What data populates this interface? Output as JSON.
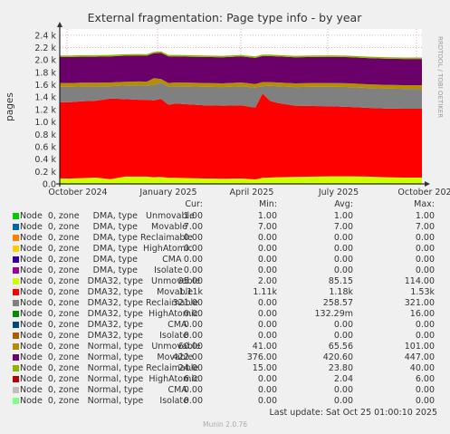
{
  "chart_data": {
    "type": "area",
    "title": "External fragmentation: Page type info - by year",
    "ylabel": "pages",
    "ylim": [
      0,
      2500
    ],
    "y_ticks": [
      "0.0",
      "0.2 k",
      "0.4 k",
      "0.6 k",
      "0.8 k",
      "1.0 k",
      "1.2 k",
      "1.4 k",
      "1.6 k",
      "1.8 k",
      "2.0 k",
      "2.2 k",
      "2.4 k"
    ],
    "x_ticks": [
      "October 2024",
      "January 2025",
      "April 2025",
      "July 2025",
      "October 2025"
    ],
    "side_label": "RRDTOOL / TOBI OETIKER",
    "legend_headers": {
      "cur": "Cur:",
      "min": "Min:",
      "avg": "Avg:",
      "max": "Max:"
    },
    "series": [
      {
        "name": "Node  0, zone     DMA, type   Unmovable",
        "color": "#00cc00",
        "cur": "1.00",
        "min": "1.00",
        "avg": "1.00",
        "max": "1.00"
      },
      {
        "name": "Node  0, zone     DMA, type     Movable",
        "color": "#0066b3",
        "cur": "7.00",
        "min": "7.00",
        "avg": "7.00",
        "max": "7.00"
      },
      {
        "name": "Node  0, zone     DMA, type Reclaimable",
        "color": "#ff8000",
        "cur": "0.00",
        "min": "0.00",
        "avg": "0.00",
        "max": "0.00"
      },
      {
        "name": "Node  0, zone     DMA, type  HighAtomic",
        "color": "#ffcc00",
        "cur": "0.00",
        "min": "0.00",
        "avg": "0.00",
        "max": "0.00"
      },
      {
        "name": "Node  0, zone     DMA, type         CMA",
        "color": "#330099",
        "cur": "0.00",
        "min": "0.00",
        "avg": "0.00",
        "max": "0.00"
      },
      {
        "name": "Node  0, zone     DMA, type      Isolate",
        "color": "#990099",
        "cur": "0.00",
        "min": "0.00",
        "avg": "0.00",
        "max": "0.00"
      },
      {
        "name": "Node  0, zone   DMA32, type   Unmovable",
        "color": "#ccff00",
        "cur": "95.00",
        "min": "2.00",
        "avg": "85.15",
        "max": "114.00"
      },
      {
        "name": "Node  0, zone   DMA32, type     Movable",
        "color": "#ff0000",
        "cur": "1.11k",
        "min": "1.11k",
        "avg": "1.18k",
        "max": "1.53k"
      },
      {
        "name": "Node  0, zone   DMA32, type Reclaimable",
        "color": "#808080",
        "cur": "321.00",
        "min": "0.00",
        "avg": "258.57",
        "max": "321.00"
      },
      {
        "name": "Node  0, zone   DMA32, type  HighAtomic",
        "color": "#008f00",
        "cur": "0.00",
        "min": "0.00",
        "avg": "132.29m",
        "max": "16.00"
      },
      {
        "name": "Node  0, zone   DMA32, type         CMA",
        "color": "#00487d",
        "cur": "0.00",
        "min": "0.00",
        "avg": "0.00",
        "max": "0.00"
      },
      {
        "name": "Node  0, zone   DMA32, type      Isolate",
        "color": "#b35a00",
        "cur": "0.00",
        "min": "0.00",
        "avg": "0.00",
        "max": "0.00"
      },
      {
        "name": "Node  0, zone   Normal, type   Unmovable",
        "color": "#b38f00",
        "cur": "60.00",
        "min": "41.00",
        "avg": "65.56",
        "max": "101.00"
      },
      {
        "name": "Node  0, zone   Normal, type     Movable",
        "color": "#6b006b",
        "cur": "422.00",
        "min": "376.00",
        "avg": "420.60",
        "max": "447.00"
      },
      {
        "name": "Node  0, zone   Normal, type Reclaimable",
        "color": "#8fb300",
        "cur": "24.00",
        "min": "15.00",
        "avg": "23.80",
        "max": "40.00"
      },
      {
        "name": "Node  0, zone   Normal, type  HighAtomic",
        "color": "#b30000",
        "cur": "6.00",
        "min": "0.00",
        "avg": "2.04",
        "max": "6.00"
      },
      {
        "name": "Node  0, zone   Normal, type         CMA",
        "color": "#bebebe",
        "cur": "0.00",
        "min": "0.00",
        "avg": "0.00",
        "max": "0.00"
      },
      {
        "name": "Node  0, zone   Normal, type      Isolate",
        "color": "#80ff80",
        "cur": "0.00",
        "min": "0.00",
        "avg": "0.00",
        "max": "0.00"
      }
    ],
    "stack_profile": {
      "x": [
        0,
        0.03,
        0.06,
        0.1,
        0.14,
        0.18,
        0.22,
        0.24,
        0.26,
        0.28,
        0.3,
        0.32,
        0.36,
        0.4,
        0.45,
        0.5,
        0.54,
        0.56,
        0.58,
        0.6,
        0.65,
        0.7,
        0.75,
        0.8,
        0.85,
        0.9,
        0.95,
        1.0
      ],
      "dma32_unmovable": [
        80,
        80,
        85,
        95,
        70,
        110,
        110,
        110,
        100,
        105,
        90,
        90,
        85,
        80,
        75,
        80,
        65,
        90,
        95,
        100,
        105,
        110,
        115,
        115,
        110,
        100,
        95,
        95
      ],
      "dma32_movable": [
        1230,
        1230,
        1240,
        1240,
        1300,
        1250,
        1240,
        1240,
        1240,
        1260,
        1180,
        1200,
        1190,
        1180,
        1180,
        1180,
        1160,
        1360,
        1240,
        1200,
        1150,
        1140,
        1130,
        1120,
        1110,
        1110,
        1110,
        1110
      ],
      "dma32_reclaimable": [
        250,
        250,
        240,
        230,
        200,
        220,
        230,
        230,
        250,
        260,
        290,
        280,
        290,
        300,
        300,
        310,
        320,
        120,
        240,
        270,
        300,
        310,
        315,
        320,
        320,
        321,
        321,
        321
      ],
      "normal_unmovable": [
        60,
        60,
        60,
        60,
        60,
        60,
        65,
        60,
        110,
        60,
        60,
        60,
        60,
        60,
        60,
        60,
        60,
        65,
        60,
        60,
        60,
        60,
        60,
        60,
        60,
        60,
        60,
        60
      ],
      "normal_movable": [
        420,
        420,
        420,
        420,
        420,
        420,
        420,
        420,
        400,
        420,
        430,
        420,
        420,
        420,
        420,
        420,
        420,
        420,
        420,
        420,
        420,
        420,
        422,
        422,
        422,
        422,
        422,
        422
      ],
      "normal_reclaimable": [
        24,
        24,
        24,
        24,
        24,
        24,
        24,
        24,
        24,
        24,
        24,
        24,
        24,
        24,
        24,
        24,
        24,
        24,
        24,
        24,
        24,
        24,
        24,
        24,
        24,
        24,
        24,
        24
      ]
    },
    "last_update": "Last update: Sat Oct 25 01:00:10 2025",
    "version": "Munin 2.0.76"
  }
}
